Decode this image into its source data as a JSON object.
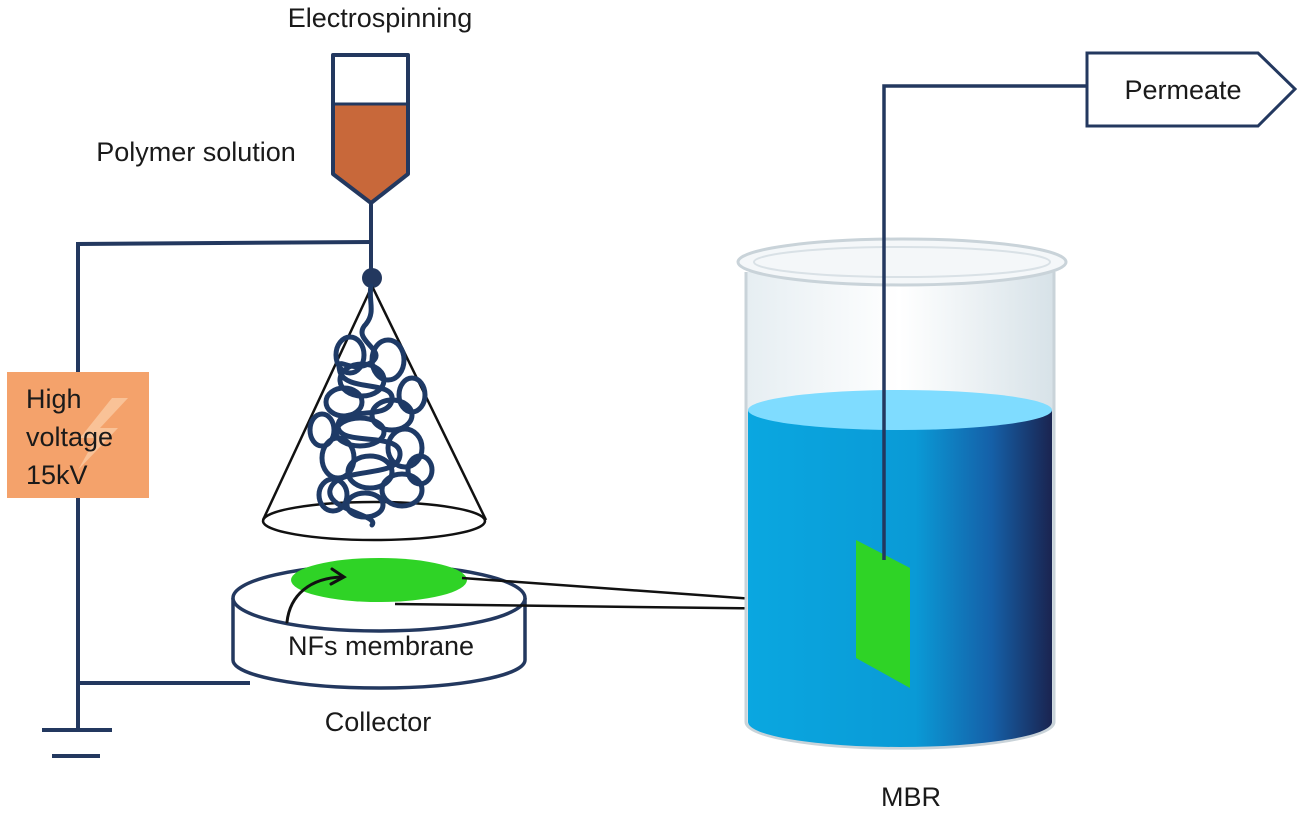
{
  "labels": {
    "electrospinning": "Electrospinning",
    "polymer_solution": "Polymer solution",
    "high": "High",
    "voltage": "voltage",
    "kv": "15kV",
    "nfs_membrane": "NFs membrane",
    "collector": "Collector",
    "mbr": "MBR",
    "permeate": "Permeate"
  },
  "colors": {
    "wire": "#23385f",
    "polymer": "#c8683a",
    "voltage_box": "#f4a26b",
    "membrane": "#2fd326",
    "water_light": "#7fdcff",
    "water": "#0aa7e0",
    "water_dark": "#1a2450"
  },
  "icons": [
    "lightning-bolt-icon",
    "ground-symbol-icon",
    "curved-arrow-icon",
    "syringe-icon",
    "beaker-icon"
  ]
}
